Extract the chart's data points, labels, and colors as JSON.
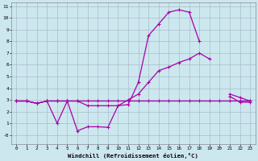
{
  "xlabel": "Windchill (Refroidissement éolien,°C)",
  "bg_color": "#cce8ee",
  "grid_color": "#aabbcc",
  "line_color": "#aa00aa",
  "xlim": [
    -0.5,
    23.5
  ],
  "ylim": [
    -0.8,
    11.3
  ],
  "ytick_vals": [
    0,
    1,
    2,
    3,
    4,
    5,
    6,
    7,
    8,
    9,
    10,
    11
  ],
  "ytick_labels": [
    "-0",
    "1",
    "2",
    "3",
    "4",
    "5",
    "6",
    "7",
    "8",
    "9",
    "10",
    "11"
  ],
  "xtick_vals": [
    0,
    1,
    2,
    3,
    4,
    5,
    6,
    7,
    8,
    9,
    10,
    11,
    12,
    13,
    14,
    15,
    16,
    17,
    18,
    19,
    20,
    21,
    22,
    23
  ],
  "line1_x": [
    0,
    1,
    2,
    3,
    4,
    5,
    6,
    7,
    8,
    9,
    10,
    11,
    12,
    13,
    14,
    15,
    16,
    17,
    18,
    19,
    20,
    21,
    22,
    23
  ],
  "line1_y": [
    2.9,
    2.9,
    2.7,
    2.9,
    1.0,
    2.9,
    0.35,
    0.7,
    0.7,
    0.65,
    2.5,
    2.6,
    4.5,
    8.5,
    9.5,
    10.5,
    10.7,
    10.5,
    8.0,
    null,
    null,
    3.3,
    2.8,
    2.8
  ],
  "line2_x": [
    0,
    1,
    2,
    3,
    4,
    5,
    6,
    7,
    8,
    9,
    10,
    11,
    12,
    13,
    14,
    15,
    16,
    17,
    18,
    19,
    20,
    21,
    22,
    23
  ],
  "line2_y": [
    2.9,
    2.9,
    2.7,
    2.9,
    2.9,
    2.9,
    2.9,
    2.5,
    2.5,
    2.5,
    2.5,
    3.0,
    3.5,
    4.5,
    5.5,
    5.8,
    6.2,
    6.5,
    7.0,
    6.5,
    null,
    3.5,
    3.2,
    2.9
  ],
  "line3_x": [
    0,
    1,
    2,
    3,
    4,
    5,
    6,
    7,
    8,
    9,
    10,
    11,
    12,
    13,
    14,
    15,
    16,
    17,
    18,
    19,
    20,
    21,
    22,
    23
  ],
  "line3_y": [
    2.9,
    2.9,
    2.7,
    2.9,
    2.9,
    2.9,
    2.9,
    2.9,
    2.9,
    2.9,
    2.9,
    2.9,
    2.9,
    2.9,
    2.9,
    2.9,
    2.9,
    2.9,
    2.9,
    2.9,
    2.9,
    2.9,
    2.9,
    2.9
  ]
}
